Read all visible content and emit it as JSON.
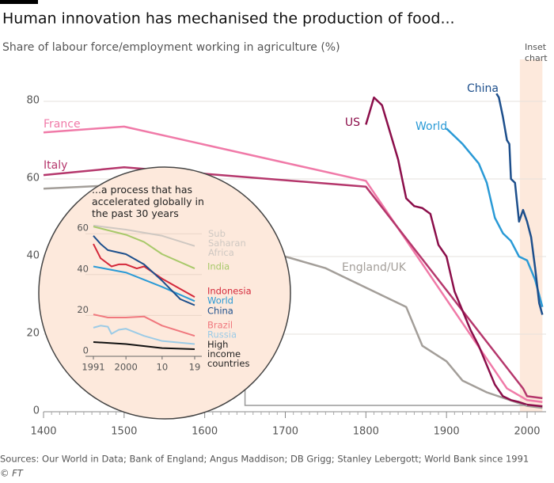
{
  "chart_data": [
    {
      "type": "line",
      "title": "Human innovation has mechanised the production of food...",
      "subtitle": "Share of labour force/employment working in agriculture (%)",
      "source": "Sources: Our World in Data; Bank of England; Angus Maddison; DB Grigg; Stanley Lebergott; World Bank since 1991",
      "credit": "© FT",
      "annotation": "Inset chart",
      "xlim": [
        1400,
        2020
      ],
      "ylim": [
        0,
        86
      ],
      "xticks": [
        1400,
        1500,
        1600,
        1700,
        1800,
        1900,
        2000
      ],
      "yticks": [
        0,
        20,
        40,
        60,
        80
      ],
      "grid": true,
      "inset_range": [
        1991,
        2019
      ],
      "series": [
        {
          "name": "France",
          "color": "#f07aa8",
          "x": [
            1400,
            1500,
            1800,
            1975,
            2000,
            2019
          ],
          "values": [
            72,
            73.5,
            59.5,
            6,
            3,
            2.5
          ]
        },
        {
          "name": "Italy",
          "color": "#b5376c",
          "x": [
            1400,
            1500,
            1800,
            1995,
            2000,
            2019
          ],
          "values": [
            61,
            63,
            58,
            6,
            4,
            3.5
          ]
        },
        {
          "name": "England/UK",
          "color": "#a39e99",
          "x": [
            1400,
            1500,
            1600,
            1700,
            1750,
            1800,
            1850,
            1870,
            1900,
            1920,
            1950,
            2000,
            2019
          ],
          "values": [
            57.5,
            58.5,
            46,
            40,
            37,
            32,
            27,
            17,
            13,
            8,
            5,
            1.5,
            1
          ]
        },
        {
          "name": "US",
          "color": "#8b0e4a",
          "x": [
            1800,
            1810,
            1820,
            1840,
            1850,
            1860,
            1870,
            1880,
            1890,
            1900,
            1910,
            1920,
            1930,
            1940,
            1950,
            1960,
            1970,
            1980,
            1990,
            2000,
            2019
          ],
          "values": [
            74,
            81,
            79,
            65,
            55,
            53,
            52.5,
            51,
            43,
            40,
            31,
            26,
            21,
            17,
            12,
            7,
            4,
            3,
            2.5,
            1.8,
            1.4
          ]
        },
        {
          "name": "World",
          "color": "#2a9ad6",
          "x": [
            1900,
            1920,
            1940,
            1950,
            1960,
            1970,
            1980,
            1990,
            2000,
            2010,
            2019
          ],
          "values": [
            73,
            69,
            64,
            59,
            50,
            46,
            44,
            40,
            39,
            34,
            27
          ]
        },
        {
          "name": "China",
          "color": "#1d4f8c",
          "x": [
            1962,
            1965,
            1970,
            1975,
            1978,
            1980,
            1985,
            1990,
            1995,
            2000,
            2005,
            2010,
            2015,
            2019
          ],
          "values": [
            82,
            81,
            76,
            70,
            69,
            60,
            59,
            49,
            52,
            49,
            45,
            37,
            28,
            25
          ]
        }
      ]
    },
    {
      "type": "line",
      "title": "...a process that has accelerated globally in the past 30 years",
      "xlim": [
        1991,
        2019
      ],
      "ylim": [
        0,
        66
      ],
      "xticks": [
        1991,
        2000,
        {
          "value": 2010,
          "label": "10"
        },
        {
          "value": 2019,
          "label": "19"
        }
      ],
      "yticks": [
        0,
        20,
        40,
        60
      ],
      "grid": true,
      "series": [
        {
          "name": "Sub Saharan Africa",
          "color": "#cfc8c2",
          "x": [
            1991,
            2000,
            2010,
            2019
          ],
          "values": [
            64,
            62,
            59,
            54
          ]
        },
        {
          "name": "India",
          "color": "#a8c96a",
          "x": [
            1991,
            2000,
            2005,
            2010,
            2019
          ],
          "values": [
            63.5,
            59.5,
            56,
            50,
            43
          ]
        },
        {
          "name": "Indonesia",
          "color": "#d4283a",
          "x": [
            1991,
            1993,
            1996,
            1998,
            2000,
            2003,
            2005,
            2010,
            2015,
            2019
          ],
          "values": [
            55,
            48,
            44,
            45,
            45,
            43,
            44,
            38,
            33,
            29
          ]
        },
        {
          "name": "World",
          "color": "#2a9ad6",
          "x": [
            1991,
            2000,
            2010,
            2019
          ],
          "values": [
            44,
            41,
            34,
            27
          ]
        },
        {
          "name": "China",
          "color": "#1d4f8c",
          "x": [
            1991,
            1993,
            1995,
            2000,
            2005,
            2010,
            2015,
            2019
          ],
          "values": [
            59,
            55,
            52,
            50,
            45,
            37,
            28,
            25
          ]
        },
        {
          "name": "Brazil",
          "color": "#f0787e",
          "x": [
            1991,
            1995,
            2000,
            2005,
            2010,
            2019
          ],
          "values": [
            20.5,
            19,
            19,
            19.5,
            15,
            10
          ]
        },
        {
          "name": "Russia",
          "color": "#9ccbe6",
          "x": [
            1991,
            1993,
            1995,
            1996,
            1998,
            2000,
            2005,
            2010,
            2019
          ],
          "values": [
            14,
            15,
            14.5,
            11,
            13,
            13.5,
            10,
            7.5,
            6
          ]
        },
        {
          "name": "High income countries",
          "color": "#111111",
          "x": [
            1991,
            2000,
            2010,
            2019
          ],
          "values": [
            7,
            6,
            4,
            3.5
          ]
        }
      ]
    }
  ]
}
